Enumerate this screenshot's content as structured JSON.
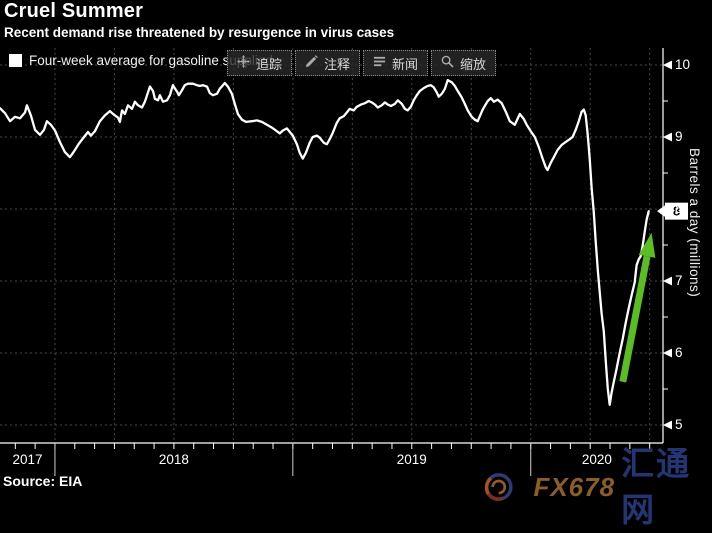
{
  "header": {
    "title": "Cruel Summer",
    "subtitle": "Recent demand rise threatened by resurgence in virus cases"
  },
  "legend": {
    "label": "Four-week average for gasoline supplied",
    "swatch_color": "#ffffff"
  },
  "toolbar": {
    "buttons": [
      {
        "icon": "crosshair-icon",
        "label": "追踪"
      },
      {
        "icon": "pencil-icon",
        "label": "注释"
      },
      {
        "icon": "news-icon",
        "label": "新闻"
      },
      {
        "icon": "magnifier-icon",
        "label": "缩放"
      }
    ]
  },
  "source": {
    "label": "Source: EIA"
  },
  "watermark": {
    "brand": "FX678",
    "brand_cn": "汇通网"
  },
  "annotation": {
    "type": "arrow-up",
    "color": "#5abe23",
    "tail": [
      2020.387,
      5.6
    ],
    "tip": [
      2020.508,
      7.67
    ]
  },
  "chart_data": {
    "type": "line",
    "title": "Cruel Summer",
    "series_name": "Four-week average for gasoline supplied",
    "line_color": "#ffffff",
    "ylabel": "Barrels a day (millions)",
    "ylim": [
      5,
      10.25
    ],
    "y_ticks": [
      10,
      9,
      8,
      7,
      6,
      5
    ],
    "y_minor_tick_step": 0.5,
    "x_range_years": [
      2017.769,
      2020.556
    ],
    "x_year_labels": [
      "2017",
      "2018",
      "2019",
      "2020"
    ],
    "x_gridline_step_years": 0.25,
    "grid": true,
    "last_value_tag": "8",
    "points": [
      [
        2017.769,
        9.4
      ],
      [
        2017.79,
        9.33
      ],
      [
        2017.811,
        9.22
      ],
      [
        2017.832,
        9.28
      ],
      [
        2017.853,
        9.26
      ],
      [
        2017.874,
        9.34
      ],
      [
        2017.882,
        9.44
      ],
      [
        2017.899,
        9.3
      ],
      [
        2017.916,
        9.1
      ],
      [
        2017.937,
        9.03
      ],
      [
        2017.954,
        9.1
      ],
      [
        2017.966,
        9.22
      ],
      [
        2017.983,
        9.17
      ],
      [
        2018.0,
        9.09
      ],
      [
        2018.021,
        8.93
      ],
      [
        2018.042,
        8.79
      ],
      [
        2018.063,
        8.72
      ],
      [
        2018.08,
        8.8
      ],
      [
        2018.101,
        8.91
      ],
      [
        2018.122,
        9.0
      ],
      [
        2018.139,
        9.07
      ],
      [
        2018.151,
        9.02
      ],
      [
        2018.168,
        9.08
      ],
      [
        2018.189,
        9.22
      ],
      [
        2018.21,
        9.3
      ],
      [
        2018.231,
        9.36
      ],
      [
        2018.248,
        9.31
      ],
      [
        2018.265,
        9.27
      ],
      [
        2018.273,
        9.21
      ],
      [
        2018.282,
        9.37
      ],
      [
        2018.294,
        9.32
      ],
      [
        2018.307,
        9.44
      ],
      [
        2018.324,
        9.39
      ],
      [
        2018.336,
        9.49
      ],
      [
        2018.349,
        9.44
      ],
      [
        2018.366,
        9.41
      ],
      [
        2018.378,
        9.49
      ],
      [
        2018.399,
        9.7
      ],
      [
        2018.412,
        9.64
      ],
      [
        2018.42,
        9.53
      ],
      [
        2018.433,
        9.51
      ],
      [
        2018.441,
        9.58
      ],
      [
        2018.454,
        9.49
      ],
      [
        2018.471,
        9.51
      ],
      [
        2018.483,
        9.58
      ],
      [
        2018.496,
        9.72
      ],
      [
        2018.513,
        9.63
      ],
      [
        2018.521,
        9.58
      ],
      [
        2018.534,
        9.65
      ],
      [
        2018.546,
        9.72
      ],
      [
        2018.559,
        9.74
      ],
      [
        2018.58,
        9.74
      ],
      [
        2018.597,
        9.72
      ],
      [
        2018.609,
        9.71
      ],
      [
        2018.622,
        9.72
      ],
      [
        2018.639,
        9.7
      ],
      [
        2018.651,
        9.61
      ],
      [
        2018.664,
        9.58
      ],
      [
        2018.681,
        9.6
      ],
      [
        2018.693,
        9.67
      ],
      [
        2018.706,
        9.72
      ],
      [
        2018.714,
        9.75
      ],
      [
        2018.727,
        9.7
      ],
      [
        2018.744,
        9.6
      ],
      [
        2018.756,
        9.46
      ],
      [
        2018.769,
        9.32
      ],
      [
        2018.786,
        9.24
      ],
      [
        2018.803,
        9.21
      ],
      [
        2018.828,
        9.22
      ],
      [
        2018.849,
        9.23
      ],
      [
        2018.87,
        9.21
      ],
      [
        2018.891,
        9.17
      ],
      [
        2018.912,
        9.13
      ],
      [
        2018.933,
        9.08
      ],
      [
        2018.945,
        9.05
      ],
      [
        2018.958,
        9.09
      ],
      [
        2018.975,
        9.12
      ],
      [
        2018.987,
        9.07
      ],
      [
        2019.0,
        9.02
      ],
      [
        2019.017,
        8.9
      ],
      [
        2019.029,
        8.78
      ],
      [
        2019.042,
        8.7
      ],
      [
        2019.055,
        8.78
      ],
      [
        2019.071,
        8.92
      ],
      [
        2019.084,
        9.0
      ],
      [
        2019.101,
        9.02
      ],
      [
        2019.113,
        8.99
      ],
      [
        2019.13,
        8.92
      ],
      [
        2019.143,
        8.9
      ],
      [
        2019.155,
        8.97
      ],
      [
        2019.168,
        9.06
      ],
      [
        2019.185,
        9.2
      ],
      [
        2019.197,
        9.26
      ],
      [
        2019.214,
        9.29
      ],
      [
        2019.227,
        9.34
      ],
      [
        2019.239,
        9.39
      ],
      [
        2019.256,
        9.37
      ],
      [
        2019.269,
        9.42
      ],
      [
        2019.286,
        9.45
      ],
      [
        2019.303,
        9.47
      ],
      [
        2019.319,
        9.5
      ],
      [
        2019.332,
        9.48
      ],
      [
        2019.345,
        9.45
      ],
      [
        2019.357,
        9.41
      ],
      [
        2019.374,
        9.44
      ],
      [
        2019.387,
        9.48
      ],
      [
        2019.399,
        9.45
      ],
      [
        2019.412,
        9.43
      ],
      [
        2019.429,
        9.46
      ],
      [
        2019.441,
        9.51
      ],
      [
        2019.458,
        9.46
      ],
      [
        2019.471,
        9.39
      ],
      [
        2019.483,
        9.37
      ],
      [
        2019.496,
        9.42
      ],
      [
        2019.508,
        9.51
      ],
      [
        2019.521,
        9.58
      ],
      [
        2019.534,
        9.64
      ],
      [
        2019.551,
        9.68
      ],
      [
        2019.567,
        9.71
      ],
      [
        2019.58,
        9.72
      ],
      [
        2019.592,
        9.69
      ],
      [
        2019.605,
        9.62
      ],
      [
        2019.613,
        9.56
      ],
      [
        2019.626,
        9.6
      ],
      [
        2019.639,
        9.67
      ],
      [
        2019.651,
        9.79
      ],
      [
        2019.668,
        9.76
      ],
      [
        2019.681,
        9.71
      ],
      [
        2019.693,
        9.64
      ],
      [
        2019.71,
        9.55
      ],
      [
        2019.723,
        9.46
      ],
      [
        2019.735,
        9.37
      ],
      [
        2019.752,
        9.28
      ],
      [
        2019.765,
        9.24
      ],
      [
        2019.777,
        9.22
      ],
      [
        2019.798,
        9.38
      ],
      [
        2019.819,
        9.5
      ],
      [
        2019.832,
        9.54
      ],
      [
        2019.845,
        9.49
      ],
      [
        2019.861,
        9.52
      ],
      [
        2019.878,
        9.47
      ],
      [
        2019.895,
        9.35
      ],
      [
        2019.912,
        9.22
      ],
      [
        2019.933,
        9.17
      ],
      [
        2019.954,
        9.32
      ],
      [
        2019.971,
        9.25
      ],
      [
        2019.983,
        9.17
      ],
      [
        2020.0,
        9.08
      ],
      [
        2020.017,
        9.0
      ],
      [
        2020.034,
        8.86
      ],
      [
        2020.05,
        8.7
      ],
      [
        2020.063,
        8.58
      ],
      [
        2020.071,
        8.54
      ],
      [
        2020.084,
        8.64
      ],
      [
        2020.097,
        8.72
      ],
      [
        2020.113,
        8.82
      ],
      [
        2020.13,
        8.89
      ],
      [
        2020.147,
        8.93
      ],
      [
        2020.164,
        8.97
      ],
      [
        2020.176,
        9.0
      ],
      [
        2020.189,
        9.1
      ],
      [
        2020.202,
        9.22
      ],
      [
        2020.214,
        9.35
      ],
      [
        2020.223,
        9.38
      ],
      [
        2020.231,
        9.3
      ],
      [
        2020.239,
        9.05
      ],
      [
        2020.248,
        8.7
      ],
      [
        2020.256,
        8.3
      ],
      [
        2020.265,
        7.95
      ],
      [
        2020.273,
        7.55
      ],
      [
        2020.282,
        7.15
      ],
      [
        2020.29,
        6.85
      ],
      [
        2020.298,
        6.55
      ],
      [
        2020.307,
        6.3
      ],
      [
        2020.315,
        5.9
      ],
      [
        2020.324,
        5.5
      ],
      [
        2020.332,
        5.28
      ],
      [
        2020.34,
        5.45
      ],
      [
        2020.349,
        5.6
      ],
      [
        2020.361,
        5.78
      ],
      [
        2020.374,
        6.0
      ],
      [
        2020.387,
        6.2
      ],
      [
        2020.399,
        6.42
      ],
      [
        2020.412,
        6.62
      ],
      [
        2020.424,
        6.8
      ],
      [
        2020.437,
        6.98
      ],
      [
        2020.445,
        7.22
      ],
      [
        2020.454,
        7.3
      ],
      [
        2020.462,
        7.34
      ],
      [
        2020.471,
        7.5
      ],
      [
        2020.479,
        7.68
      ],
      [
        2020.487,
        7.85
      ],
      [
        2020.496,
        7.97
      ]
    ]
  }
}
